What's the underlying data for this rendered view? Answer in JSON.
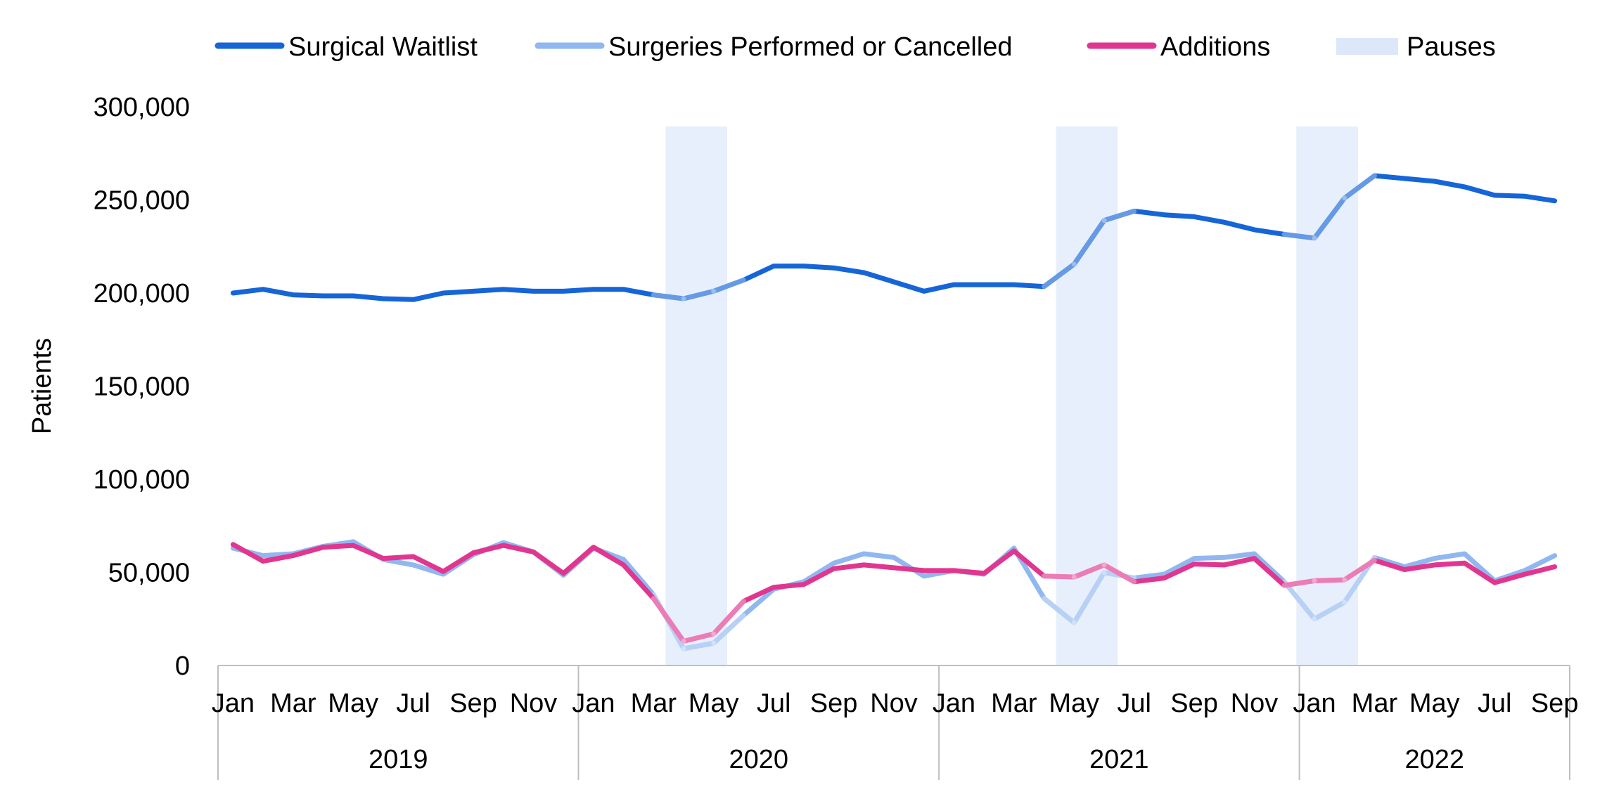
{
  "chart_data": {
    "type": "line",
    "ylabel": "Patients",
    "ylim": [
      0,
      300000
    ],
    "yticks": [
      0,
      50000,
      100000,
      150000,
      200000,
      250000,
      300000
    ],
    "ytick_labels": [
      "0",
      "50,000",
      "100,000",
      "150,000",
      "200,000",
      "250,000",
      "300,000"
    ],
    "grid": false,
    "legend_position": "top",
    "years": [
      "2019",
      "2020",
      "2021",
      "2022"
    ],
    "month_tick_labels": [
      "Jan",
      "Mar",
      "May",
      "Jul",
      "Sep",
      "Nov"
    ],
    "x": [
      "2019-01",
      "2019-02",
      "2019-03",
      "2019-04",
      "2019-05",
      "2019-06",
      "2019-07",
      "2019-08",
      "2019-09",
      "2019-10",
      "2019-11",
      "2019-12",
      "2020-01",
      "2020-02",
      "2020-03",
      "2020-04",
      "2020-05",
      "2020-06",
      "2020-07",
      "2020-08",
      "2020-09",
      "2020-10",
      "2020-11",
      "2020-12",
      "2021-01",
      "2021-02",
      "2021-03",
      "2021-04",
      "2021-05",
      "2021-06",
      "2021-07",
      "2021-08",
      "2021-09",
      "2021-10",
      "2021-11",
      "2021-12",
      "2022-01",
      "2022-02",
      "2022-03",
      "2022-04",
      "2022-05",
      "2022-06",
      "2022-07",
      "2022-08",
      "2022-09"
    ],
    "series": [
      {
        "name": "Surgical Waitlist",
        "color": "#1565D8",
        "values": [
          200000,
          202000,
          199000,
          198500,
          198500,
          197000,
          196500,
          200000,
          201000,
          202000,
          201000,
          201000,
          202000,
          202000,
          199000,
          197000,
          201000,
          207000,
          214500,
          214500,
          213500,
          211000,
          206000,
          201000,
          204500,
          204500,
          204500,
          203500,
          215500,
          239000,
          244000,
          242000,
          241000,
          238000,
          234000,
          231500,
          229500,
          251000,
          263000,
          261500,
          260000,
          257000,
          252500,
          252000,
          249500
        ]
      },
      {
        "name": "Surgeries Performed or Cancelled",
        "color": "#91B7F0",
        "values": [
          63000,
          59000,
          60000,
          64000,
          66500,
          57000,
          54000,
          49000,
          59500,
          66000,
          61000,
          48500,
          63000,
          57000,
          38000,
          9000,
          12000,
          27000,
          41000,
          45000,
          55000,
          60000,
          58000,
          48000,
          51000,
          49000,
          63000,
          36000,
          23000,
          50000,
          47000,
          49000,
          57500,
          58000,
          60000,
          45000,
          25000,
          34000,
          58000,
          53000,
          57500,
          60000,
          45500,
          51000,
          59000
        ]
      },
      {
        "name": "Additions",
        "color": "#E1368F",
        "values": [
          65000,
          56000,
          59000,
          63500,
          64500,
          57500,
          58500,
          50500,
          60500,
          64500,
          61000,
          49500,
          63500,
          54000,
          36000,
          13000,
          17000,
          34500,
          42000,
          43500,
          52000,
          54000,
          52500,
          51000,
          51000,
          49500,
          61500,
          48000,
          47500,
          54000,
          45000,
          47000,
          54500,
          54000,
          57500,
          43000,
          45500,
          46000,
          56500,
          51500,
          54000,
          55000,
          44500,
          49000,
          53000
        ]
      }
    ],
    "pauses": [
      {
        "start": "2020-04",
        "end": "2020-05"
      },
      {
        "start": "2021-05",
        "end": "2021-06"
      },
      {
        "start": "2022-01",
        "end": "2022-02"
      }
    ],
    "pause_legend": {
      "name": "Pauses",
      "color": "#DCE8FA"
    }
  }
}
